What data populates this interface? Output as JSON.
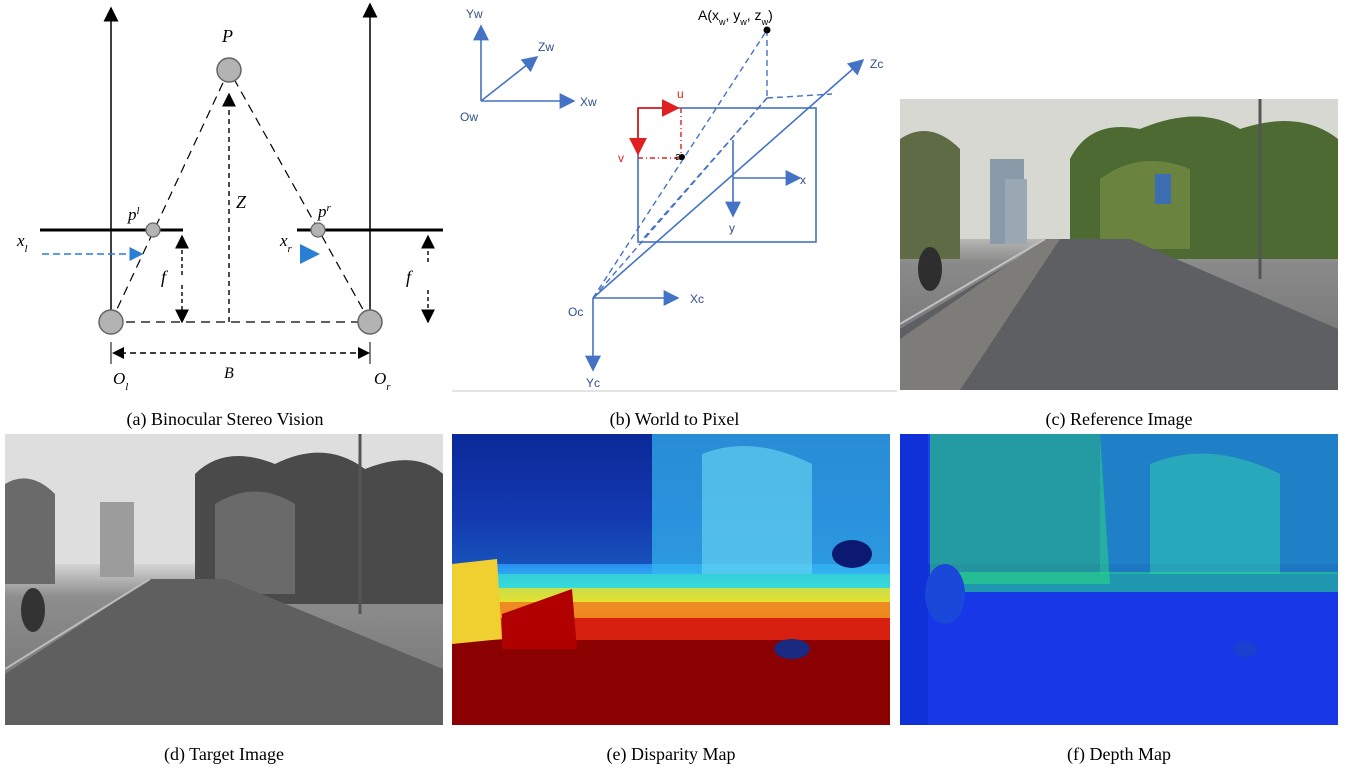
{
  "figure": {
    "panels": [
      {
        "id": "a",
        "caption": "(a) Binocular Stereo Vision"
      },
      {
        "id": "b",
        "caption": "(b) World to Pixel"
      },
      {
        "id": "c",
        "caption": "(c) Reference Image"
      },
      {
        "id": "d",
        "caption": "(d) Target Image"
      },
      {
        "id": "e",
        "caption": "(e) Disparity Map"
      },
      {
        "id": "f",
        "caption": "(f) Depth Map"
      }
    ],
    "stereo_diagram": {
      "point": "P",
      "depth": "Z",
      "focal_left": "f",
      "focal_right": "f",
      "baseline": "B",
      "left_proj": "p",
      "left_proj_sup": "l",
      "right_proj": "p",
      "right_proj_sup": "r",
      "xl": "x",
      "xl_sub": "l",
      "xr": "x",
      "xr_sub": "r",
      "ol": "O",
      "ol_sub": "l",
      "or": "O",
      "or_sub": "r"
    },
    "world_pixel": {
      "yw": "Yw",
      "zw": "Zw",
      "xw": "Xw",
      "ow": "Ow",
      "a_point": "A(x",
      "a_w1": "w",
      "a_mid1": ", y",
      "a_w2": "w",
      "a_mid2": ", z",
      "a_w3": "w",
      "a_end": ")",
      "zc": "Zc",
      "u": "u",
      "v": "v",
      "a_small": "a",
      "x": "x",
      "y": "y",
      "oc": "Oc",
      "xc": "Xc",
      "yc": "Yc"
    },
    "colors": {
      "diagram_blue": "#4472c4",
      "uv_red": "#e02020",
      "disparity_near": "#8b0000",
      "disparity_far": "#00008b",
      "depth_bg": "#1030e0"
    }
  }
}
